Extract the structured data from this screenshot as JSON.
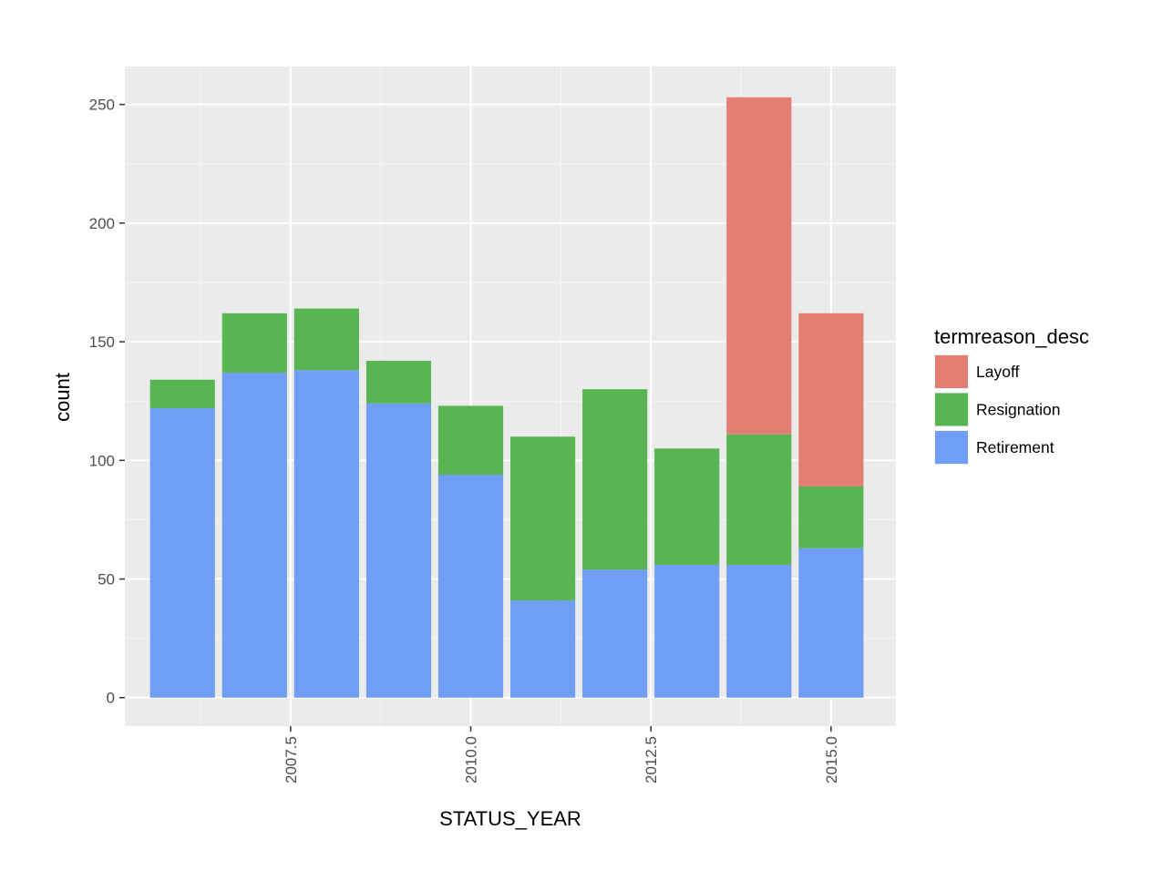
{
  "chart_data": {
    "type": "bar",
    "stacked": true,
    "title": "",
    "xlabel": "STATUS_YEAR",
    "ylabel": "count",
    "x": [
      2006,
      2007,
      2008,
      2009,
      2010,
      2011,
      2012,
      2013,
      2014,
      2015
    ],
    "xlim": [
      2005.2,
      2015.9
    ],
    "ylim": [
      -12,
      266
    ],
    "xticks": [
      2007.5,
      2010.0,
      2012.5,
      2015.0
    ],
    "xtick_labels": [
      "2007.5",
      "2010.0",
      "2012.5",
      "2015.0"
    ],
    "yticks": [
      0,
      50,
      100,
      150,
      200,
      250
    ],
    "ytick_labels": [
      "0",
      "50",
      "100",
      "150",
      "200",
      "250"
    ],
    "grid": true,
    "legend_title": "termreason_desc",
    "legend_position": "right",
    "series": [
      {
        "name": "Layoff",
        "color": "#E57E72",
        "values": [
          0,
          0,
          0,
          0,
          0,
          0,
          0,
          0,
          142,
          73
        ]
      },
      {
        "name": "Resignation",
        "color": "#59B551",
        "values": [
          12,
          25,
          26,
          18,
          29,
          69,
          76,
          49,
          55,
          26
        ]
      },
      {
        "name": "Retirement",
        "color": "#6F9EF4",
        "values": [
          122,
          137,
          138,
          124,
          94,
          41,
          54,
          56,
          56,
          63
        ]
      }
    ]
  }
}
